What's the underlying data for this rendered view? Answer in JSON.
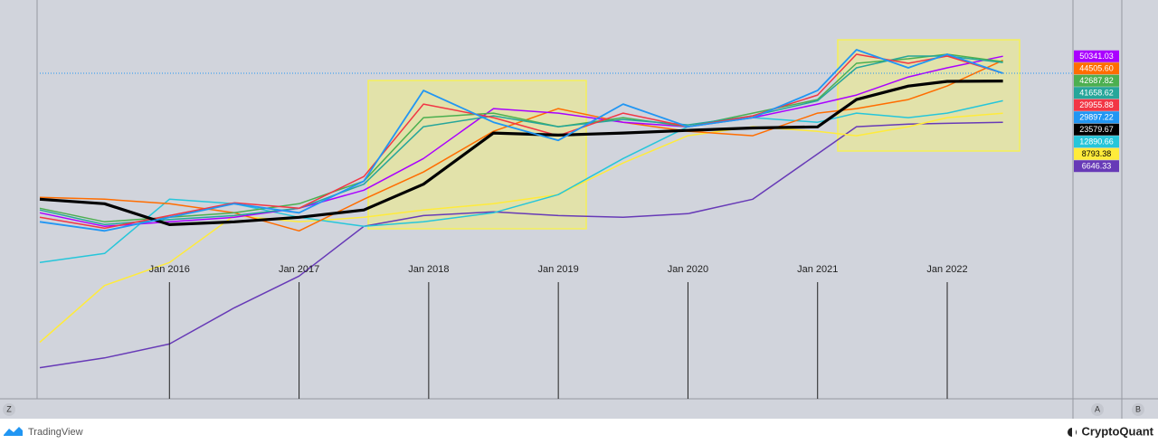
{
  "chart_data": {
    "type": "line",
    "log_scale": true,
    "x": [
      2015.0,
      2015.5,
      2016.0,
      2016.5,
      2017.0,
      2017.5,
      2017.96,
      2018.5,
      2019.0,
      2019.5,
      2020.0,
      2020.5,
      2021.0,
      2021.3,
      2021.7,
      2022.0,
      2022.43
    ],
    "xlim": [
      2015.0,
      2022.97
    ],
    "ylim": [
      1.4,
      226000
    ],
    "xticks": [
      {
        "value": 2016,
        "label": "Jan 2016"
      },
      {
        "value": 2017,
        "label": "Jan 2017"
      },
      {
        "value": 2018,
        "label": "Jan 2018"
      },
      {
        "value": 2019,
        "label": "Jan 2019"
      },
      {
        "value": 2020,
        "label": "Jan 2020"
      },
      {
        "value": 2021,
        "label": "Jan 2021"
      },
      {
        "value": 2022,
        "label": "Jan 2022"
      }
    ],
    "series": [
      {
        "color": "#673ab7",
        "values": [
          3.63,
          4.9,
          7.5,
          22.7,
          60,
          275,
          383,
          429,
          383,
          363,
          406,
          632,
          2531,
          5818,
          6320,
          6450,
          6646.33
        ]
      },
      {
        "color": "#ffeb3b",
        "values": [
          7.9,
          45,
          91,
          383,
          316,
          363,
          454,
          550,
          727,
          1917,
          4410,
          5818,
          5060,
          4410,
          5818,
          7684,
          8793.38
        ]
      },
      {
        "color": "#26c6da",
        "values": [
          91,
          120,
          632,
          550,
          363,
          275,
          316,
          417,
          727,
          2200,
          5818,
          7684,
          6680,
          8820,
          7684,
          8820,
          12890.66
        ]
      },
      {
        "color": "#ff6d00",
        "values": [
          668,
          632,
          550,
          417,
          240,
          632,
          1453,
          5060,
          10140,
          6680,
          5060,
          4410,
          8820,
          10140,
          13385,
          20270,
          44505.6
        ],
        "value_labels": [
          null,
          null,
          null,
          null,
          null,
          null,
          null,
          null,
          null,
          null,
          null,
          null,
          null,
          null,
          null,
          null,
          "44505.60"
        ]
      },
      {
        "color": "#aa00ff",
        "values": [
          417,
          275,
          316,
          363,
          479,
          834,
          2200,
          10140,
          8820,
          6680,
          5818,
          7684,
          11630,
          15370,
          26750,
          35300,
          50341.03
        ]
      },
      {
        "color": "#4caf50",
        "values": [
          479,
          316,
          363,
          417,
          550,
          1100,
          7684,
          8820,
          5818,
          7684,
          5818,
          8820,
          13385,
          40580,
          46600,
          53550,
          42687.82
        ]
      },
      {
        "color": "#26a69a",
        "values": [
          454,
          291,
          340,
          383,
          479,
          1000,
          5818,
          8120,
          5818,
          7270,
          6150,
          8120,
          12890,
          35300,
          50650,
          50650,
          41658.62
        ]
      },
      {
        "color": "#f23645",
        "values": [
          363,
          260,
          383,
          565,
          479,
          1266,
          11630,
          7684,
          4410,
          8820,
          5818,
          8120,
          15370,
          53550,
          40580,
          50650,
          29955.88
        ]
      },
      {
        "color": "#000000",
        "values": [
          632,
          550,
          290,
          316,
          363,
          455,
          1000,
          4800,
          4500,
          4800,
          5200,
          5600,
          5800,
          13385,
          20200,
          23300,
          23579.67
        ]
      },
      {
        "color": "#2196f3",
        "values": [
          316,
          240,
          363,
          550,
          417,
          1100,
          17655,
          6680,
          3830,
          11630,
          5818,
          7684,
          17655,
          61500,
          35300,
          53550,
          29897.22
        ]
      }
    ],
    "axis_buttons": [
      "Z",
      "A",
      "B"
    ],
    "footer": {
      "left": "TradingView",
      "right": "CryptoQuant"
    }
  }
}
